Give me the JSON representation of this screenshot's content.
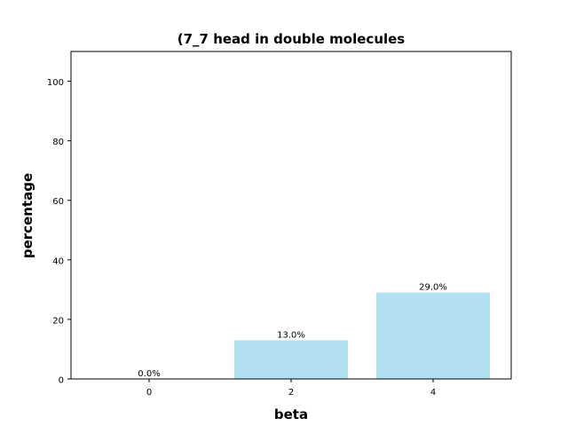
{
  "chart_data": {
    "type": "bar",
    "title": "(7_7 head in double molecules",
    "xlabel": "beta",
    "ylabel": "percentage",
    "categories": [
      "0",
      "2",
      "4"
    ],
    "x": [
      0,
      2,
      4
    ],
    "values": [
      0.0,
      13.0,
      29.0
    ],
    "data_labels": [
      "0.0%",
      "13.0%",
      "29.0%"
    ],
    "xlim": [
      -1.1,
      5.1
    ],
    "ylim": [
      0,
      110
    ],
    "yticks": [
      0,
      20,
      40,
      60,
      80,
      100
    ],
    "bar_width": 1.6,
    "bar_color": "#b3dff3",
    "grid": false,
    "legend": "none"
  }
}
